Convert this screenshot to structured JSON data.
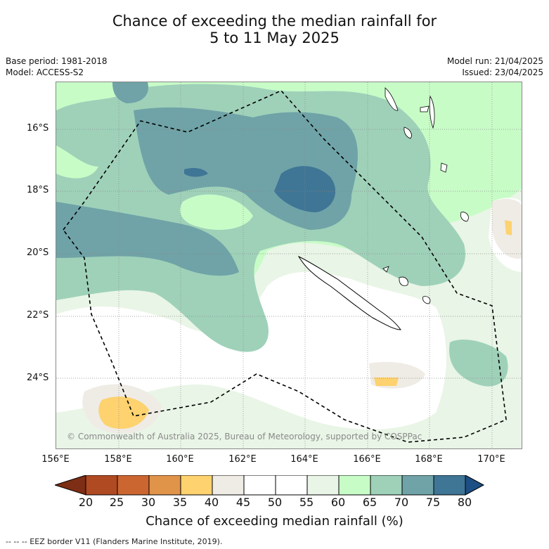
{
  "title_line1": "Chance of exceeding the median rainfall for",
  "title_line2": "5 to 11 May 2025",
  "base_period": "Base period: 1981-2018",
  "model": "Model: ACCESS-S2",
  "model_run": "Model run: 21/04/2025",
  "issued": "Issued: 23/04/2025",
  "copyright": "© Commonwealth of Australia 2025, Bureau of Meteorology, supported by COSPPac",
  "lat_labels": [
    "16°S",
    "18°S",
    "20°S",
    "22°S",
    "24°S"
  ],
  "lon_labels": [
    "156°E",
    "158°E",
    "160°E",
    "162°E",
    "164°E",
    "166°E",
    "168°E",
    "170°E"
  ],
  "colorbar": {
    "ticks": [
      "20",
      "25",
      "30",
      "35",
      "40",
      "45",
      "50",
      "55",
      "60",
      "65",
      "70",
      "75",
      "80"
    ],
    "colors": [
      "#7d2e14",
      "#b04a22",
      "#cb6630",
      "#e0944a",
      "#fdd26f",
      "#efebe5",
      "#ffffff",
      "#ffffff",
      "#e9f5e6",
      "#c8fcc7",
      "#9fd1b9",
      "#6fa3a7",
      "#3f7595",
      "#1d4f85"
    ],
    "label": "Chance of exceeding median rainfall (%)"
  },
  "footnote": "--  --  -- EEZ border V11 (Flanders Marine Institute, 2019)."
}
